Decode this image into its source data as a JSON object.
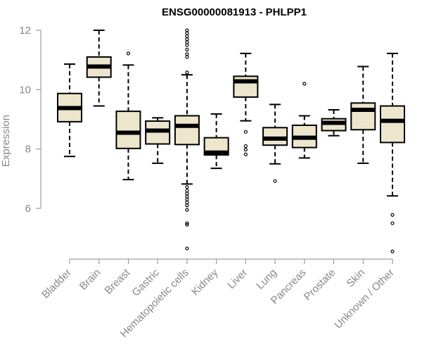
{
  "chart_data": {
    "type": "boxplot",
    "title": "ENSG00000081913 - PHLPP1",
    "xlabel": "",
    "ylabel": "Expression",
    "ylim": [
      4.5,
      12.1
    ],
    "yticks": [
      6,
      8,
      10,
      12
    ],
    "box_fill": "#ede6cc",
    "categories": [
      "Bladder",
      "Brain",
      "Breast",
      "Gastric",
      "Hematopoietic cells",
      "Kidney",
      "Liver",
      "Lung",
      "Pancreas",
      "Prostate",
      "Skin",
      "Unknown / Other"
    ],
    "boxes": [
      {
        "name": "Bladder",
        "whisker_low": 7.75,
        "q1": 8.92,
        "median": 9.38,
        "q3": 9.87,
        "whisker_high": 10.86,
        "outliers": []
      },
      {
        "name": "Brain",
        "whisker_low": 9.45,
        "q1": 10.42,
        "median": 10.78,
        "q3": 11.1,
        "whisker_high": 12.0,
        "outliers": []
      },
      {
        "name": "Breast",
        "whisker_low": 6.97,
        "q1": 8.02,
        "median": 8.55,
        "q3": 9.27,
        "whisker_high": 10.83,
        "outliers": [
          11.22
        ]
      },
      {
        "name": "Gastric",
        "whisker_low": 7.52,
        "q1": 8.17,
        "median": 8.62,
        "q3": 8.94,
        "whisker_high": 9.05,
        "outliers": []
      },
      {
        "name": "Hematopoietic cells",
        "whisker_low": 6.82,
        "q1": 8.15,
        "median": 8.78,
        "q3": 9.12,
        "whisker_high": 10.5,
        "outliers": [
          12.0,
          11.9,
          11.8,
          11.7,
          11.6,
          11.5,
          11.35,
          11.2,
          11.1,
          10.58,
          6.72,
          6.6,
          6.5,
          6.4,
          6.3,
          6.2,
          6.1,
          5.95,
          5.5,
          5.45,
          4.65
        ]
      },
      {
        "name": "Kidney",
        "whisker_low": 7.35,
        "q1": 7.8,
        "median": 7.88,
        "q3": 8.38,
        "whisker_high": 9.18,
        "outliers": []
      },
      {
        "name": "Liver",
        "whisker_low": 8.95,
        "q1": 9.75,
        "median": 10.28,
        "q3": 10.45,
        "whisker_high": 11.22,
        "outliers": [
          8.58,
          8.1,
          7.98,
          7.82
        ]
      },
      {
        "name": "Lung",
        "whisker_low": 7.5,
        "q1": 8.13,
        "median": 8.35,
        "q3": 8.72,
        "whisker_high": 9.5,
        "outliers": [
          6.92
        ]
      },
      {
        "name": "Pancreas",
        "whisker_low": 7.7,
        "q1": 8.05,
        "median": 8.38,
        "q3": 8.8,
        "whisker_high": 9.12,
        "outliers": [
          10.2
        ]
      },
      {
        "name": "Prostate",
        "whisker_low": 8.45,
        "q1": 8.62,
        "median": 8.88,
        "q3": 9.02,
        "whisker_high": 9.32,
        "outliers": []
      },
      {
        "name": "Skin",
        "whisker_low": 7.52,
        "q1": 8.65,
        "median": 9.32,
        "q3": 9.55,
        "whisker_high": 10.78,
        "outliers": []
      },
      {
        "name": "Unknown / Other",
        "whisker_low": 6.42,
        "q1": 8.22,
        "median": 8.95,
        "q3": 9.45,
        "whisker_high": 11.22,
        "outliers": [
          5.78,
          5.5,
          4.55
        ]
      }
    ]
  }
}
